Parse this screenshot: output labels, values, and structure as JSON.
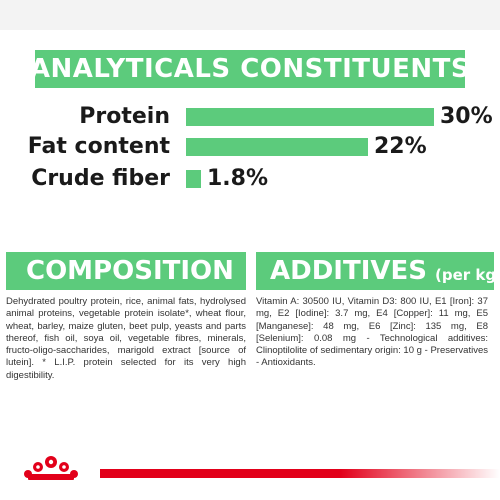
{
  "analytics": {
    "title": "ANALYTICALS CONSTITUENTS",
    "rows": [
      {
        "label": "Protein",
        "value": "30%",
        "fraction": 0.3
      },
      {
        "label": "Fat content",
        "value": "22%",
        "fraction": 0.22
      },
      {
        "label": "Crude fiber",
        "value": "1.8%",
        "fraction": 0.018
      }
    ]
  },
  "composition": {
    "title": "COMPOSITION",
    "text": "Dehydrated poultry protein, rice, animal fats, hydrolysed animal proteins, vegetable protein isolate*, wheat flour, wheat, barley, maize gluten, beet pulp, yeasts and parts thereof, fish oil, soya oil, vegetable fibres, minerals, fructo-oligo-saccharides, marigold extract [source of lutein]. * L.I.P. protein selected for its very high digestibility."
  },
  "additives": {
    "title": "ADDITIVES",
    "subtitle": "(per kg)",
    "text": "Vitamin A: 30500 IU, Vitamin D3: 800 IU, E1 [Iron]: 37 mg, E2 [Iodine]: 3.7 mg, E4 [Copper]: 11 mg, E5 [Manganese]: 48 mg, E6 [Zinc]: 135 mg, E8 [Selenium]: 0.08 mg - Technological additives: Clinoptilolite of sedimentary origin: 10 g - Preservatives - Antioxidants."
  },
  "colors": {
    "accent_green": "#5ccb7c",
    "brand_red": "#e2001a"
  },
  "footer": {
    "logo_icon": "royal-canin-crown-icon"
  }
}
